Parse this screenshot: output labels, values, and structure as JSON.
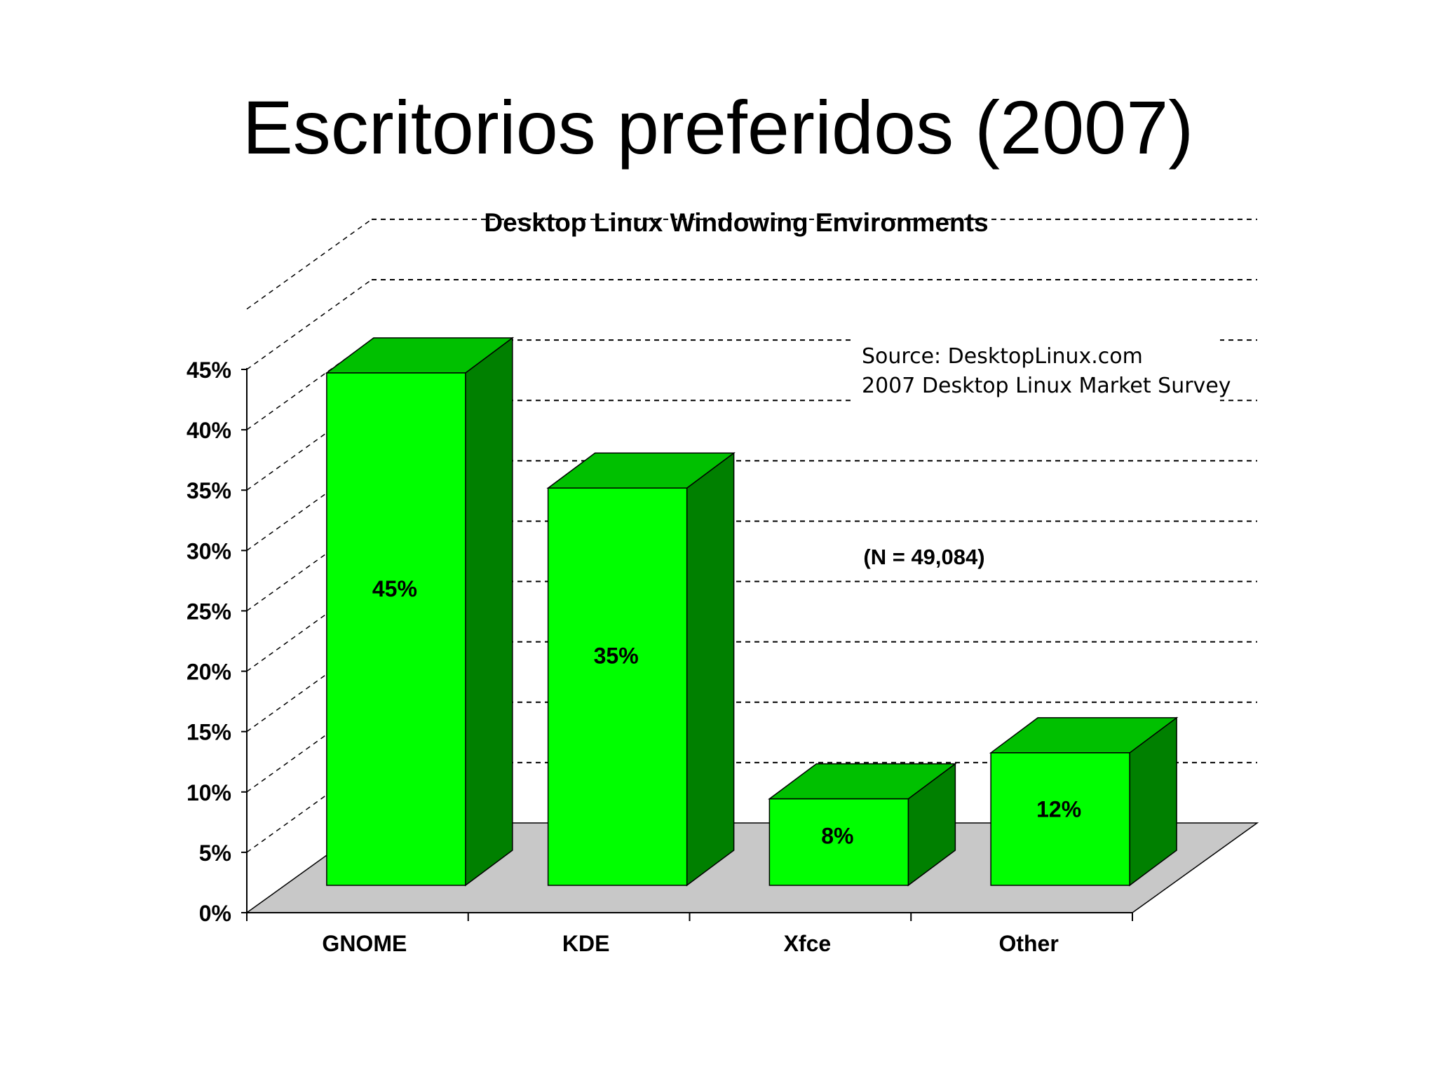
{
  "slide": {
    "title": "Escritorios preferidos (2007)"
  },
  "chart_data": {
    "type": "bar",
    "title": "Desktop Linux Windowing Environments",
    "categories": [
      "GNOME",
      "KDE",
      "Xfce",
      "Other"
    ],
    "values": [
      45,
      35,
      8,
      12
    ],
    "value_labels": [
      "45%",
      "35%",
      "8%",
      "12%"
    ],
    "ylim": [
      0,
      45
    ],
    "y_ticks": [
      0,
      5,
      10,
      15,
      20,
      25,
      30,
      35,
      40,
      45
    ],
    "y_tick_labels": [
      "0%",
      "5%",
      "10%",
      "15%",
      "20%",
      "25%",
      "30%",
      "35%",
      "40%",
      "45%"
    ],
    "xlabel": "",
    "ylabel": "",
    "grid": true,
    "three_d": true,
    "annotations": {
      "source_line1": "Source: DesktopLinux.com",
      "source_line2": "2007 Desktop Linux Market Survey",
      "sample_size": "(N = 49,084)"
    },
    "colors": {
      "bar_front": "#00ff00",
      "bar_top": "#00c000",
      "bar_side": "#008000",
      "floor": "#c8c8c8",
      "text": "#000000"
    }
  }
}
